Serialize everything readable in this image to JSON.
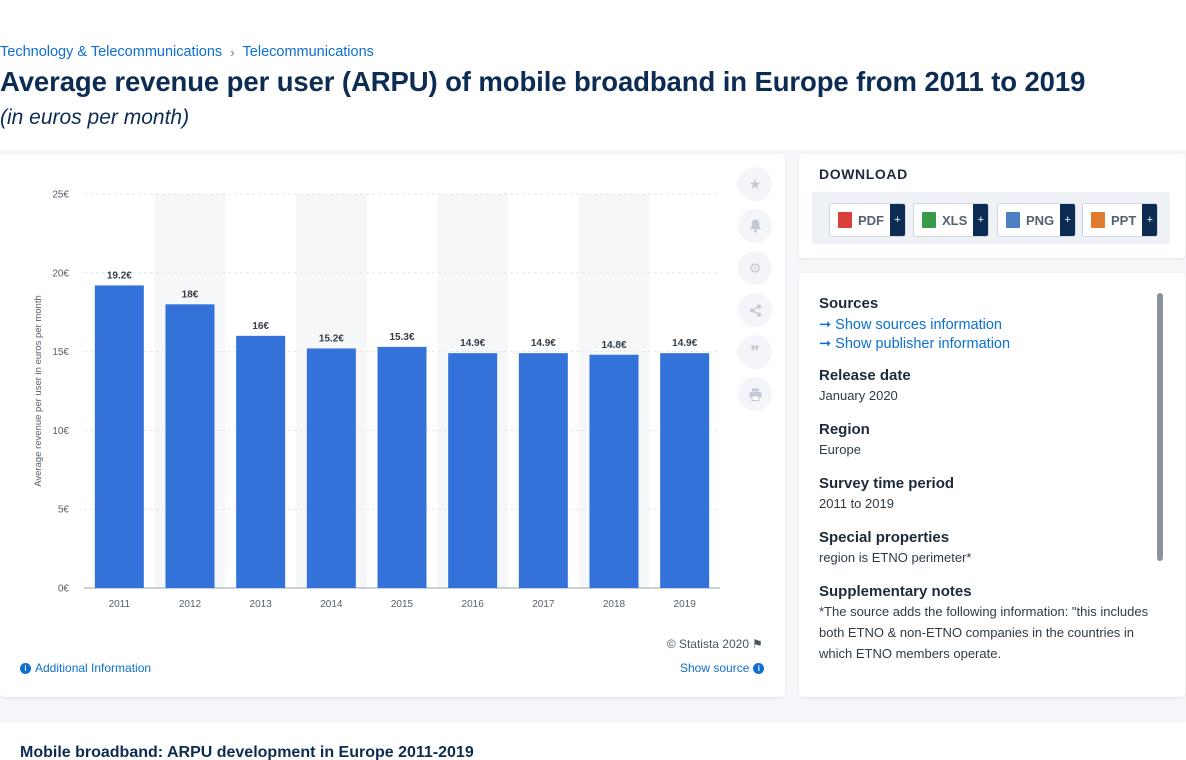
{
  "breadcrumb": {
    "items": [
      "Technology & Telecommunications",
      "Telecommunications"
    ],
    "separator": "›"
  },
  "title": "Average revenue per user (ARPU) of mobile broadband in Europe from 2011 to 2019",
  "subtitle": "(in euros per month)",
  "chart_data": {
    "type": "bar",
    "categories": [
      "2011",
      "2012",
      "2013",
      "2014",
      "2015",
      "2016",
      "2017",
      "2018",
      "2019"
    ],
    "values": [
      19.2,
      18,
      16,
      15.2,
      15.3,
      14.9,
      14.9,
      14.8,
      14.9
    ],
    "data_labels": [
      "19.2€",
      "18€",
      "16€",
      "15.2€",
      "15.3€",
      "14.9€",
      "14.9€",
      "14.8€",
      "14.9€"
    ],
    "ylabel": "Average revenue per user in euros per month",
    "xlabel": "",
    "ylim": [
      0,
      25
    ],
    "yticks": [
      0,
      5,
      10,
      15,
      20,
      25
    ],
    "ytick_labels": [
      "0€",
      "5€",
      "10€",
      "15€",
      "20€",
      "25€"
    ],
    "grid": true,
    "bar_color": "#3272d9"
  },
  "chart_footer": {
    "copyright": "© Statista 2020",
    "additional_info": "Additional Information",
    "show_source": "Show source"
  },
  "toolbar": {
    "icons": [
      "star-icon",
      "bell-icon",
      "gear-icon",
      "share-icon",
      "quote-icon",
      "print-icon"
    ]
  },
  "download": {
    "title": "DOWNLOAD",
    "buttons": [
      {
        "label": "PDF",
        "color": "#d9403a"
      },
      {
        "label": "XLS",
        "color": "#3a9a4a"
      },
      {
        "label": "PNG",
        "color": "#4a7fc1"
      },
      {
        "label": "PPT",
        "color": "#e07a2c"
      }
    ],
    "plus": "+"
  },
  "meta": {
    "sources_head": "Sources",
    "show_sources": "Show sources information",
    "show_publisher": "Show publisher information",
    "release_head": "Release date",
    "release_val": "January 2020",
    "region_head": "Region",
    "region_val": "Europe",
    "survey_head": "Survey time period",
    "survey_val": "2011 to 2019",
    "special_head": "Special properties",
    "special_val": "region is ETNO perimeter*",
    "supp_head": "Supplementary notes",
    "supp_val": "*The source adds the following information: \"this includes both ETNO & non-ETNO companies in the countries in which ETNO members operate."
  },
  "bottom": {
    "title": "Mobile broadband: ARPU development in Europe 2011-2019"
  }
}
